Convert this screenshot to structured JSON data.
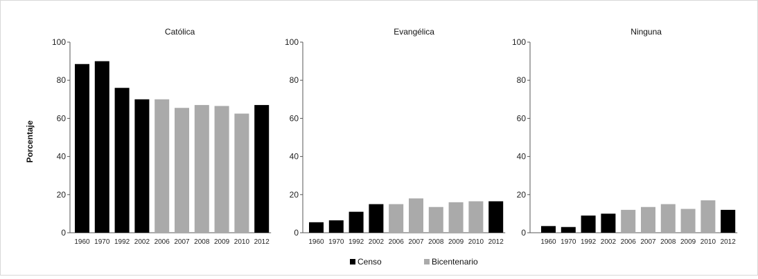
{
  "chart_data": {
    "type": "bar",
    "ylabel": "Porcentaje",
    "ylim": [
      0,
      100
    ],
    "yticks": [
      0,
      20,
      40,
      60,
      80,
      100
    ],
    "categories": [
      "1960",
      "1970",
      "1992",
      "2002",
      "2006",
      "2007",
      "2008",
      "2009",
      "2010",
      "2012"
    ],
    "source_by_category": [
      "Censo",
      "Censo",
      "Censo",
      "Censo",
      "Bicentenario",
      "Bicentenario",
      "Bicentenario",
      "Bicentenario",
      "Bicentenario",
      "Censo"
    ],
    "legend": [
      {
        "name": "Censo",
        "color": "#000000"
      },
      {
        "name": "Bicentenario",
        "color": "#aaaaaa"
      }
    ],
    "legend_placement": "bottom-center",
    "grid": false,
    "panels": [
      {
        "title": "Católica",
        "values": [
          88.5,
          90,
          76,
          70,
          70,
          65.5,
          67,
          66.5,
          62.5,
          67
        ]
      },
      {
        "title": "Evangélica",
        "values": [
          5.5,
          6.5,
          11,
          15,
          15,
          18,
          13.5,
          16,
          16.5,
          16.5
        ]
      },
      {
        "title": "Ninguna",
        "values": [
          3.5,
          3,
          9,
          10,
          12,
          13.5,
          15,
          12.5,
          17,
          12
        ]
      }
    ]
  }
}
